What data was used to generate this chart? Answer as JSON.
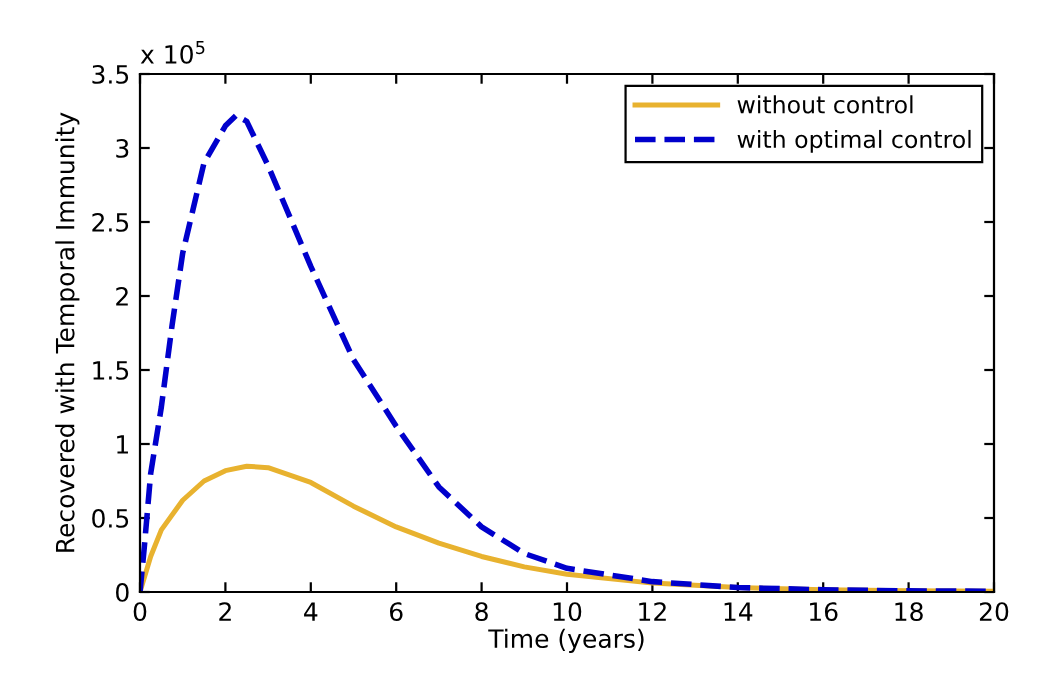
{
  "chart_data": {
    "type": "line",
    "xlabel": "Time (years)",
    "ylabel": "Recovered with Temporal Immunity",
    "annotations": [
      "x 10$^{5}$"
    ],
    "xlim": [
      0,
      20
    ],
    "xticks": [
      0,
      2,
      4,
      6,
      8,
      10,
      12,
      14,
      16,
      18,
      20
    ],
    "ylim": [
      0,
      3.5
    ],
    "yticks": [
      0,
      0.5,
      1,
      1.5,
      2,
      2.5,
      3,
      3.5
    ],
    "grid": false,
    "legend": "top right",
    "series": [
      {
        "name": "without control",
        "color": "#e8b22f",
        "line_style": "solid",
        "x": [
          0,
          0.25,
          0.5,
          1,
          1.5,
          2,
          2.5,
          3,
          4,
          5,
          6,
          7,
          8,
          9,
          10,
          12,
          14,
          16,
          18,
          20
        ],
        "values": [
          0,
          0.24,
          0.42,
          0.62,
          0.75,
          0.82,
          0.85,
          0.84,
          0.74,
          0.58,
          0.44,
          0.33,
          0.24,
          0.17,
          0.12,
          0.06,
          0.03,
          0.015,
          0.008,
          0.005
        ]
      },
      {
        "name": "with optimal control",
        "color": "#0000cc",
        "line_style": "dashed",
        "x": [
          0,
          0.1,
          0.25,
          0.5,
          0.75,
          1,
          1.5,
          2,
          2.25,
          2.5,
          3,
          4,
          5,
          6,
          7,
          8,
          9,
          10,
          12,
          14,
          16,
          18,
          20
        ],
        "values": [
          0,
          0.3,
          0.8,
          1.25,
          1.8,
          2.29,
          2.9,
          3.15,
          3.22,
          3.18,
          2.88,
          2.2,
          1.57,
          1.12,
          0.71,
          0.44,
          0.26,
          0.16,
          0.07,
          0.03,
          0.015,
          0.008,
          0.005
        ]
      }
    ]
  }
}
